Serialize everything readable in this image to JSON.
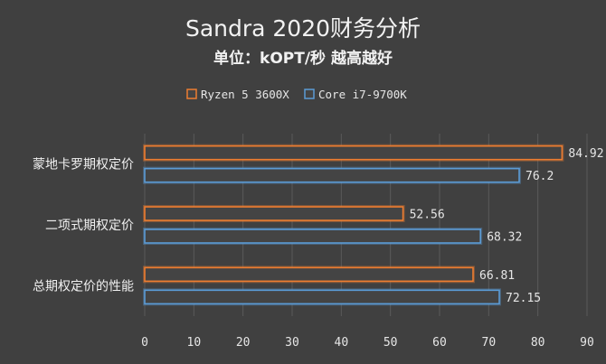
{
  "chart_data": {
    "type": "bar",
    "orientation": "horizontal",
    "title": "Sandra 2020财务分析",
    "subtitle": "单位：kOPT/秒 越高越好",
    "categories": [
      "蒙地卡罗期权定价",
      "二项式期权定价",
      "总期权定价的性能"
    ],
    "series": [
      {
        "name": "Ryzen 5 3600X",
        "color": "#ed7d31",
        "values": [
          84.92,
          52.56,
          66.81
        ]
      },
      {
        "name": "Core i7-9700K",
        "color": "#5b9bd5",
        "values": [
          76.2,
          68.32,
          72.15
        ]
      }
    ],
    "data_labels": [
      [
        "84.92",
        "52.56",
        "66.81"
      ],
      [
        "76.2",
        "68.32",
        "72.15"
      ]
    ],
    "xlim": [
      0,
      90
    ],
    "xticks": [
      "0",
      "10",
      "20",
      "30",
      "40",
      "50",
      "60",
      "70",
      "80",
      "90"
    ],
    "grid": true,
    "legend_position": "top"
  }
}
